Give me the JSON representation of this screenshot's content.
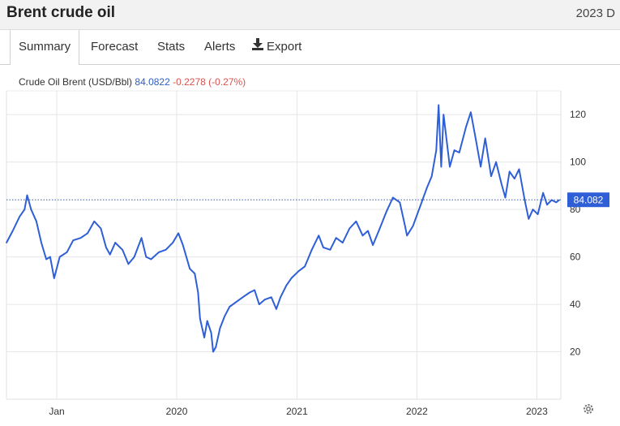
{
  "header": {
    "title": "Brent crude oil",
    "date_fragment": "2023 D"
  },
  "tabs": [
    {
      "label": "Summary",
      "active": true
    },
    {
      "label": "Forecast"
    },
    {
      "label": "Stats"
    },
    {
      "label": "Alerts"
    },
    {
      "label": "Export",
      "icon": "download-icon"
    }
  ],
  "legend": {
    "name": "Crude Oil Brent (USD/Bbl)",
    "value": "84.0822",
    "change": "-0.2278 (-0.27%)"
  },
  "current_label": "84.082",
  "settings_icon": "gear-icon",
  "colors": {
    "line": "#2f5fd6",
    "label_bg": "#2f5fd6",
    "change": "#d9534f",
    "grid": "#e6e6e6"
  },
  "chart_data": {
    "type": "line",
    "title": "",
    "xlabel": "",
    "ylabel": "",
    "y_axis_position": "right",
    "ylim": [
      0,
      130
    ],
    "xlim": [
      "2018-08-01",
      "2023-03-15"
    ],
    "y_ticks": [
      20,
      40,
      60,
      80,
      100,
      120
    ],
    "x_ticks": [
      {
        "label": "Jan",
        "date": "2019-01-01"
      },
      {
        "label": "2020",
        "date": "2020-01-01"
      },
      {
        "label": "2021",
        "date": "2021-01-01"
      },
      {
        "label": "2022",
        "date": "2022-01-01"
      },
      {
        "label": "2023",
        "date": "2023-01-01"
      }
    ],
    "grid": true,
    "current_value": 84.082,
    "series": [
      {
        "name": "Crude Oil Brent (USD/Bbl)",
        "points": [
          [
            "2018-08-01",
            66
          ],
          [
            "2018-08-20",
            71
          ],
          [
            "2018-09-10",
            77
          ],
          [
            "2018-09-25",
            80
          ],
          [
            "2018-10-03",
            86
          ],
          [
            "2018-10-15",
            80
          ],
          [
            "2018-10-31",
            75
          ],
          [
            "2018-11-15",
            66
          ],
          [
            "2018-11-30",
            59
          ],
          [
            "2018-12-12",
            60
          ],
          [
            "2018-12-24",
            51
          ],
          [
            "2019-01-10",
            60
          ],
          [
            "2019-02-01",
            62
          ],
          [
            "2019-02-20",
            67
          ],
          [
            "2019-03-15",
            68
          ],
          [
            "2019-04-05",
            70
          ],
          [
            "2019-04-25",
            75
          ],
          [
            "2019-05-15",
            72
          ],
          [
            "2019-05-31",
            64
          ],
          [
            "2019-06-12",
            61
          ],
          [
            "2019-06-28",
            66
          ],
          [
            "2019-07-20",
            63
          ],
          [
            "2019-08-07",
            57
          ],
          [
            "2019-08-25",
            60
          ],
          [
            "2019-09-16",
            68
          ],
          [
            "2019-09-30",
            60
          ],
          [
            "2019-10-15",
            59
          ],
          [
            "2019-11-08",
            62
          ],
          [
            "2019-11-29",
            63
          ],
          [
            "2019-12-20",
            66
          ],
          [
            "2020-01-06",
            70
          ],
          [
            "2020-01-20",
            65
          ],
          [
            "2020-02-10",
            55
          ],
          [
            "2020-02-25",
            53
          ],
          [
            "2020-03-06",
            45
          ],
          [
            "2020-03-12",
            34
          ],
          [
            "2020-03-25",
            26
          ],
          [
            "2020-04-03",
            33
          ],
          [
            "2020-04-15",
            28
          ],
          [
            "2020-04-21",
            20
          ],
          [
            "2020-04-29",
            22
          ],
          [
            "2020-05-12",
            30
          ],
          [
            "2020-05-26",
            35
          ],
          [
            "2020-06-10",
            39
          ],
          [
            "2020-06-30",
            41
          ],
          [
            "2020-07-20",
            43
          ],
          [
            "2020-08-10",
            45
          ],
          [
            "2020-08-25",
            46
          ],
          [
            "2020-09-08",
            40
          ],
          [
            "2020-09-25",
            42
          ],
          [
            "2020-10-15",
            43
          ],
          [
            "2020-10-30",
            38
          ],
          [
            "2020-11-12",
            43
          ],
          [
            "2020-11-30",
            48
          ],
          [
            "2020-12-15",
            51
          ],
          [
            "2021-01-06",
            54
          ],
          [
            "2021-01-25",
            56
          ],
          [
            "2021-02-15",
            63
          ],
          [
            "2021-03-08",
            69
          ],
          [
            "2021-03-22",
            64
          ],
          [
            "2021-04-12",
            63
          ],
          [
            "2021-04-30",
            68
          ],
          [
            "2021-05-20",
            66
          ],
          [
            "2021-06-10",
            72
          ],
          [
            "2021-06-30",
            75
          ],
          [
            "2021-07-20",
            69
          ],
          [
            "2021-08-05",
            71
          ],
          [
            "2021-08-20",
            65
          ],
          [
            "2021-09-10",
            72
          ],
          [
            "2021-09-30",
            79
          ],
          [
            "2021-10-20",
            85
          ],
          [
            "2021-11-10",
            83
          ],
          [
            "2021-11-26",
            73
          ],
          [
            "2021-12-02",
            69
          ],
          [
            "2021-12-20",
            73
          ],
          [
            "2022-01-10",
            81
          ],
          [
            "2022-01-31",
            89
          ],
          [
            "2022-02-15",
            94
          ],
          [
            "2022-03-01",
            105
          ],
          [
            "2022-03-08",
            124
          ],
          [
            "2022-03-16",
            98
          ],
          [
            "2022-03-23",
            120
          ],
          [
            "2022-04-11",
            98
          ],
          [
            "2022-04-25",
            105
          ],
          [
            "2022-05-10",
            104
          ],
          [
            "2022-05-31",
            115
          ],
          [
            "2022-06-14",
            121
          ],
          [
            "2022-06-30",
            109
          ],
          [
            "2022-07-14",
            98
          ],
          [
            "2022-07-28",
            110
          ],
          [
            "2022-08-15",
            94
          ],
          [
            "2022-08-30",
            100
          ],
          [
            "2022-09-15",
            91
          ],
          [
            "2022-09-27",
            85
          ],
          [
            "2022-10-10",
            96
          ],
          [
            "2022-10-25",
            93
          ],
          [
            "2022-11-08",
            97
          ],
          [
            "2022-11-25",
            84
          ],
          [
            "2022-12-07",
            76
          ],
          [
            "2022-12-20",
            80
          ],
          [
            "2023-01-04",
            78
          ],
          [
            "2023-01-20",
            87
          ],
          [
            "2023-02-01",
            82
          ],
          [
            "2023-02-15",
            84
          ],
          [
            "2023-03-01",
            83
          ],
          [
            "2023-03-10",
            84
          ]
        ]
      }
    ]
  }
}
